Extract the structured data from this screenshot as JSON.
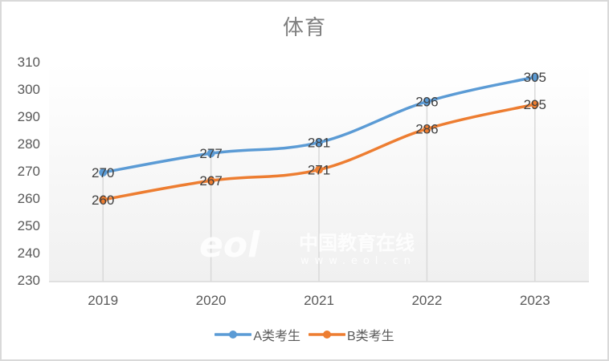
{
  "chart_data": {
    "type": "line",
    "title": "体育",
    "categories": [
      "2019",
      "2020",
      "2021",
      "2022",
      "2023"
    ],
    "series": [
      {
        "name": "A类考生",
        "color": "#5b9bd5",
        "values": [
          270,
          277,
          281,
          296,
          305
        ]
      },
      {
        "name": "B类考生",
        "color": "#ed7d31",
        "values": [
          260,
          267,
          271,
          286,
          295
        ]
      }
    ],
    "xlabel": "",
    "ylabel": "",
    "ylim": [
      230,
      310
    ],
    "yticks": [
      230,
      240,
      250,
      260,
      270,
      280,
      290,
      300,
      310
    ],
    "grid": "vertical drop lines at categories",
    "legend_position": "bottom",
    "data_labels": true
  },
  "watermark": {
    "logo": "eol",
    "text": "中国教育在线",
    "url": "www.eol.cn"
  }
}
